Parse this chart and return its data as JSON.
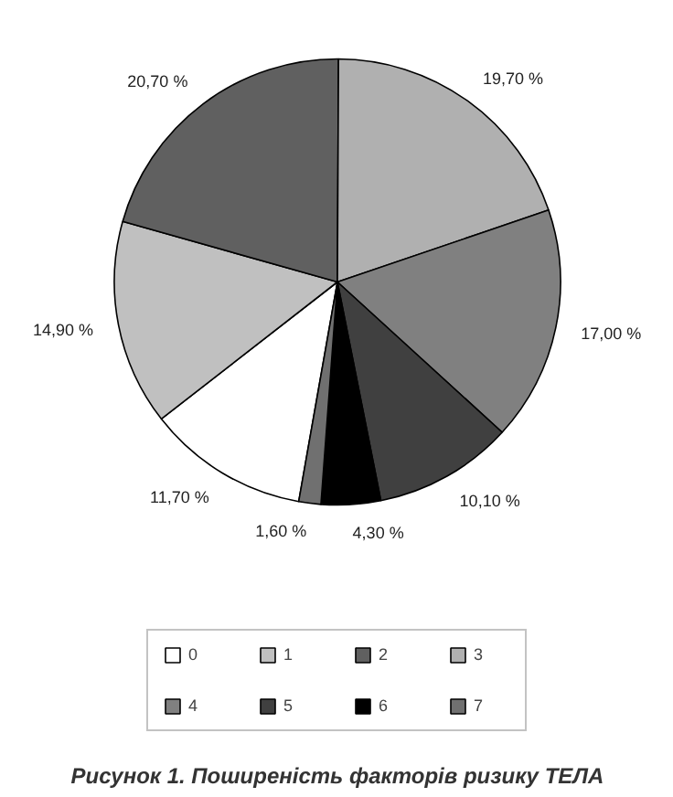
{
  "chart_data": {
    "type": "pie",
    "title": "Рисунок 1. Поширеність факторів ризику ТЕЛА",
    "categories": [
      "0",
      "1",
      "2",
      "3",
      "4",
      "5",
      "6",
      "7"
    ],
    "values": [
      11.7,
      14.9,
      20.7,
      19.7,
      17.0,
      10.1,
      4.3,
      1.6
    ],
    "colors": [
      "#ffffff",
      "#c0c0c0",
      "#606060",
      "#b0b0b0",
      "#808080",
      "#404040",
      "#000000",
      "#707070"
    ],
    "value_labels": [
      "11,70 %",
      "14,90 %",
      "20,70 %",
      "19,70 %",
      "17,00 %",
      "10,10 %",
      "4,30 %",
      "1,60 %"
    ],
    "legend": "bottom"
  }
}
